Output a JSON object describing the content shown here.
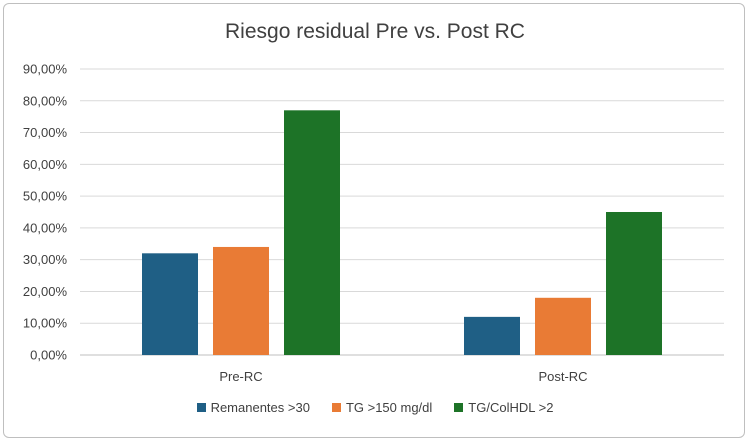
{
  "chart_data": {
    "type": "bar",
    "title": "Riesgo residual Pre vs. Post RC",
    "categories": [
      "Pre-RC",
      "Post-RC"
    ],
    "series": [
      {
        "name": "Remanentes >30",
        "values": [
          32,
          12
        ],
        "color": "#1f5f85"
      },
      {
        "name": "TG >150 mg/dl",
        "values": [
          34,
          18
        ],
        "color": "#e97b35"
      },
      {
        "name": "TG/ColHDL >2",
        "values": [
          77,
          45
        ],
        "color": "#1d7327"
      }
    ],
    "ylim": [
      0,
      90
    ],
    "yticks": [
      "0,00%",
      "10,00%",
      "20,00%",
      "30,00%",
      "40,00%",
      "50,00%",
      "60,00%",
      "70,00%",
      "80,00%",
      "90,00%"
    ],
    "grid": true,
    "legend": "bottom"
  }
}
